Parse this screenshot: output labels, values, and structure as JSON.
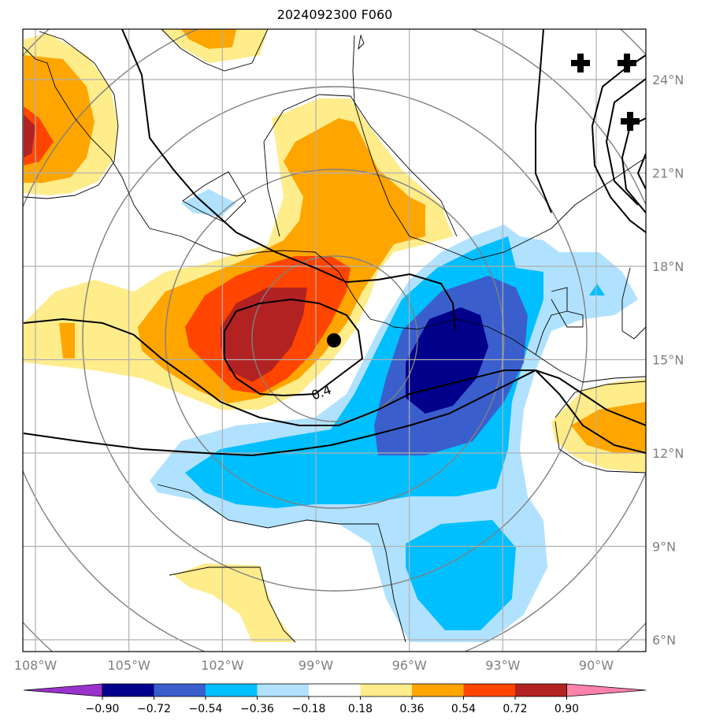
{
  "title": "2024092300 F060",
  "map": {
    "lon_ticks": [
      {
        "value": -108,
        "label": "108°W"
      },
      {
        "value": -105,
        "label": "105°W"
      },
      {
        "value": -102,
        "label": "102°W"
      },
      {
        "value": -99,
        "label": "99°W"
      },
      {
        "value": -96,
        "label": "96°W"
      },
      {
        "value": -93,
        "label": "93°W"
      },
      {
        "value": -90,
        "label": "90°W"
      }
    ],
    "lat_ticks": [
      {
        "value": 24,
        "label": "24°N"
      },
      {
        "value": 21,
        "label": "21°N"
      },
      {
        "value": 18,
        "label": "18°N"
      },
      {
        "value": 15,
        "label": "15°N"
      },
      {
        "value": 12,
        "label": "12°N"
      },
      {
        "value": 9,
        "label": "9°N"
      },
      {
        "value": 6,
        "label": "6°N"
      }
    ],
    "contour_label": "0.4",
    "center_marker": {
      "lon": -98.5,
      "lat": 15.6
    },
    "colors": {
      "neg_090": "#9932cc",
      "neg_072": "#00008b",
      "neg_054": "#3a5fcd",
      "neg_036": "#00bfff",
      "neg_018": "#b0e2ff",
      "neutral": "#ffffff",
      "pos_018": "#ffec8b",
      "pos_036": "#ffa500",
      "pos_054": "#ff4500",
      "pos_072": "#b22222",
      "pos_090": "#ff82ab"
    }
  },
  "colorbar": {
    "labels": [
      "−0.90",
      "−0.72",
      "−0.54",
      "−0.36",
      "−0.18",
      "0.18",
      "0.36",
      "0.54",
      "0.72",
      "0.90"
    ],
    "colors": [
      "#9932cc",
      "#00008b",
      "#3a5fcd",
      "#00bfff",
      "#b0e2ff",
      "#ffffff",
      "#ffec8b",
      "#ffa500",
      "#ff4500",
      "#b22222",
      "#ff82ab"
    ]
  }
}
